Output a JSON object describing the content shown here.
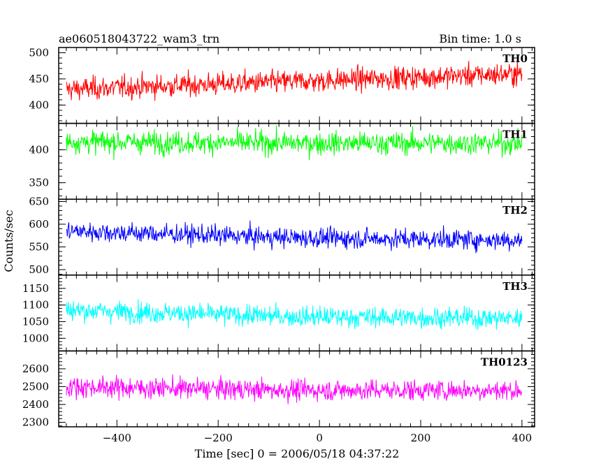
{
  "header": {
    "title": "ae060518043722_wam3_trn",
    "bin_time": "Bin time: 1.0 s"
  },
  "axes": {
    "ylabel": "Counts/sec",
    "xlabel": "Time [sec] 0 = 2006/05/18 04:37:22"
  },
  "chart_data": {
    "type": "line",
    "title": "ae060518043722_wam3_trn",
    "xlabel": "Time [sec] 0 = 2006/05/18 04:37:22",
    "ylabel": "Counts/sec",
    "xlim": [
      -515,
      425
    ],
    "xticks": [
      -400,
      -200,
      0,
      200,
      400
    ],
    "x_range_data": [
      -500,
      400
    ],
    "bin_time_s": 1.0,
    "panels": [
      {
        "name": "TH0",
        "color": "#ff0000",
        "ylim": [
          365,
          510
        ],
        "yticks": [
          400,
          450,
          500
        ],
        "trend": [
          430,
          445,
          460
        ],
        "amp": 28
      },
      {
        "name": "TH1",
        "color": "#00ff00",
        "ylim": [
          325,
          440
        ],
        "yticks": [
          350,
          400
        ],
        "trend": [
          412,
          410,
          410
        ],
        "amp": 22
      },
      {
        "name": "TH2",
        "color": "#0000ff",
        "ylim": [
          488,
          655
        ],
        "yticks": [
          500,
          550,
          600,
          650
        ],
        "trend": [
          585,
          570,
          565
        ],
        "amp": 28
      },
      {
        "name": "TH3",
        "color": "#00ffff",
        "ylim": [
          962,
          1190
        ],
        "yticks": [
          1000,
          1050,
          1100,
          1150
        ],
        "trend": [
          1085,
          1065,
          1060
        ],
        "amp": 40
      },
      {
        "name": "TH0123",
        "color": "#ff00ff",
        "ylim": [
          2275,
          2700
        ],
        "yticks": [
          2300,
          2400,
          2500,
          2600
        ],
        "trend": [
          2500,
          2480,
          2480
        ],
        "amp": 75
      }
    ]
  }
}
